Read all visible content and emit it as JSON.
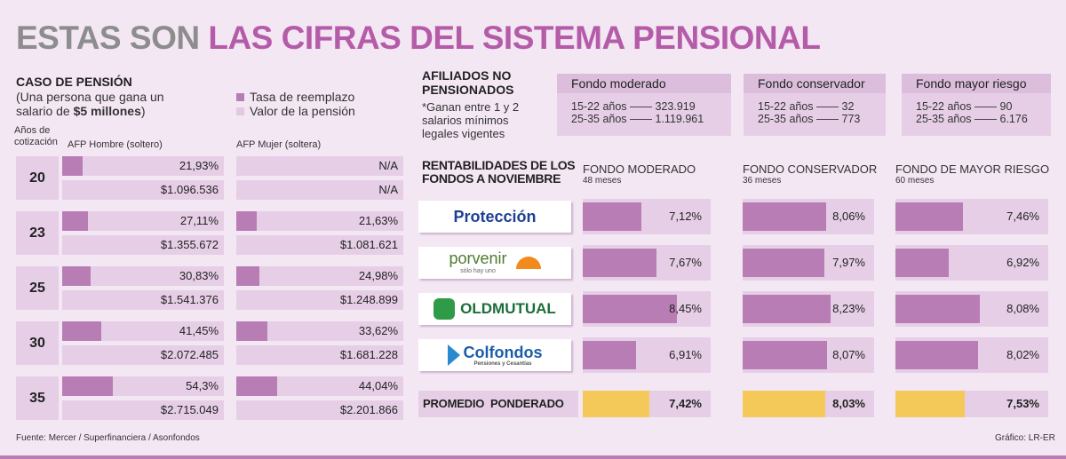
{
  "title": {
    "gray": "ESTAS SON",
    "pink": "LAS CIFRAS DEL SISTEMA PENSIONAL"
  },
  "pension": {
    "heading": "CASO DE PENSIÓN",
    "desc1": "(Una persona que gana un",
    "desc2": "salario de ",
    "desc_bold": "$5 millones",
    "desc3": ")",
    "legend": [
      "Tasa de reemplazo",
      "Valor de la pensión"
    ],
    "col_year": "Años de cotización",
    "col_men": "AFP Hombre (soltero)",
    "col_women": "AFP Mujer (soltera)",
    "rows": [
      {
        "years": "20",
        "men_rate": 21.93,
        "men_rate_label": "21,93%",
        "men_value": "$1.096.536",
        "women_rate": null,
        "women_rate_label": "N/A",
        "women_value": "N/A"
      },
      {
        "years": "23",
        "men_rate": 27.11,
        "men_rate_label": "27,11%",
        "men_value": "$1.355.672",
        "women_rate": 21.63,
        "women_rate_label": "21,63%",
        "women_value": "$1.081.621"
      },
      {
        "years": "25",
        "men_rate": 30.83,
        "men_rate_label": "30,83%",
        "men_value": "$1.541.376",
        "women_rate": 24.98,
        "women_rate_label": "24,98%",
        "women_value": "$1.248.899"
      },
      {
        "years": "30",
        "men_rate": 41.45,
        "men_rate_label": "41,45%",
        "men_value": "$2.072.485",
        "women_rate": 33.62,
        "women_rate_label": "33,62%",
        "women_value": "$1.681.228"
      },
      {
        "years": "35",
        "men_rate": 54.3,
        "men_rate_label": "54,3%",
        "men_value": "$2.715.049",
        "women_rate": 44.04,
        "women_rate_label": "44,04%",
        "women_value": "$2.201.866"
      }
    ]
  },
  "affiliates": {
    "heading1": "AFILIADOS NO",
    "heading2": "PENSIONADOS",
    "note1": "*Ganan entre 1 y 2",
    "note2": "salarios mínimos",
    "note3": "legales vigentes",
    "funds": [
      {
        "name": "Fondo moderado",
        "lines": [
          "15-22 años —— 323.919",
          "25-35 años —— 1.119.961"
        ]
      },
      {
        "name": "Fondo conservador",
        "lines": [
          "15-22 años —— 32",
          "25-35 años —— 773"
        ]
      },
      {
        "name": "Fondo mayor riesgo",
        "lines": [
          "15-22 años —— 90",
          "25-35 años —— 6.176"
        ]
      }
    ]
  },
  "chart_data": {
    "type": "bar",
    "title": "RENTABILIDADES DE LOS FONDOS A NOVIEMBRE",
    "columns": [
      {
        "name": "FONDO MODERADO",
        "period": "48 meses"
      },
      {
        "name": "FONDO CONSERVADOR",
        "period": "36 meses"
      },
      {
        "name": "FONDO DE MAYOR RIESGO",
        "period": "60 meses"
      }
    ],
    "categories": [
      "Protección",
      "porvenir",
      "OLDMUTUAL",
      "Colfondos"
    ],
    "logo_sub": {
      "porvenir": "sólo hay uno",
      "colfondos": "Pensiones y Cesantías"
    },
    "series": [
      {
        "name": "FONDO MODERADO",
        "values": [
          7.12,
          7.67,
          8.45,
          6.91
        ],
        "labels": [
          "7,12%",
          "7,67%",
          "8,45%",
          "6,91%"
        ]
      },
      {
        "name": "FONDO CONSERVADOR",
        "values": [
          8.06,
          7.97,
          8.23,
          8.07
        ],
        "labels": [
          "8,06%",
          "7,97%",
          "8,23%",
          "8,07%"
        ]
      },
      {
        "name": "FONDO DE MAYOR RIESGO",
        "values": [
          7.46,
          6.92,
          8.08,
          8.02
        ],
        "labels": [
          "7,46%",
          "6,92%",
          "8,08%",
          "8,02%"
        ]
      }
    ],
    "average": {
      "label": "PROMEDIO  PONDERADO",
      "values": [
        7.42,
        8.03,
        7.53
      ],
      "labels": [
        "7,42%",
        "8,03%",
        "7,53%"
      ]
    }
  },
  "footer": {
    "source": "Fuente: Mercer / Superfinanciera / Asonfondos",
    "credit": "Gráfico: LR-ER"
  },
  "colors": {
    "bar": "#b97db6",
    "track": "#e6cfe6",
    "avg": "#f5c85a",
    "title_pink": "#b55ca9"
  }
}
